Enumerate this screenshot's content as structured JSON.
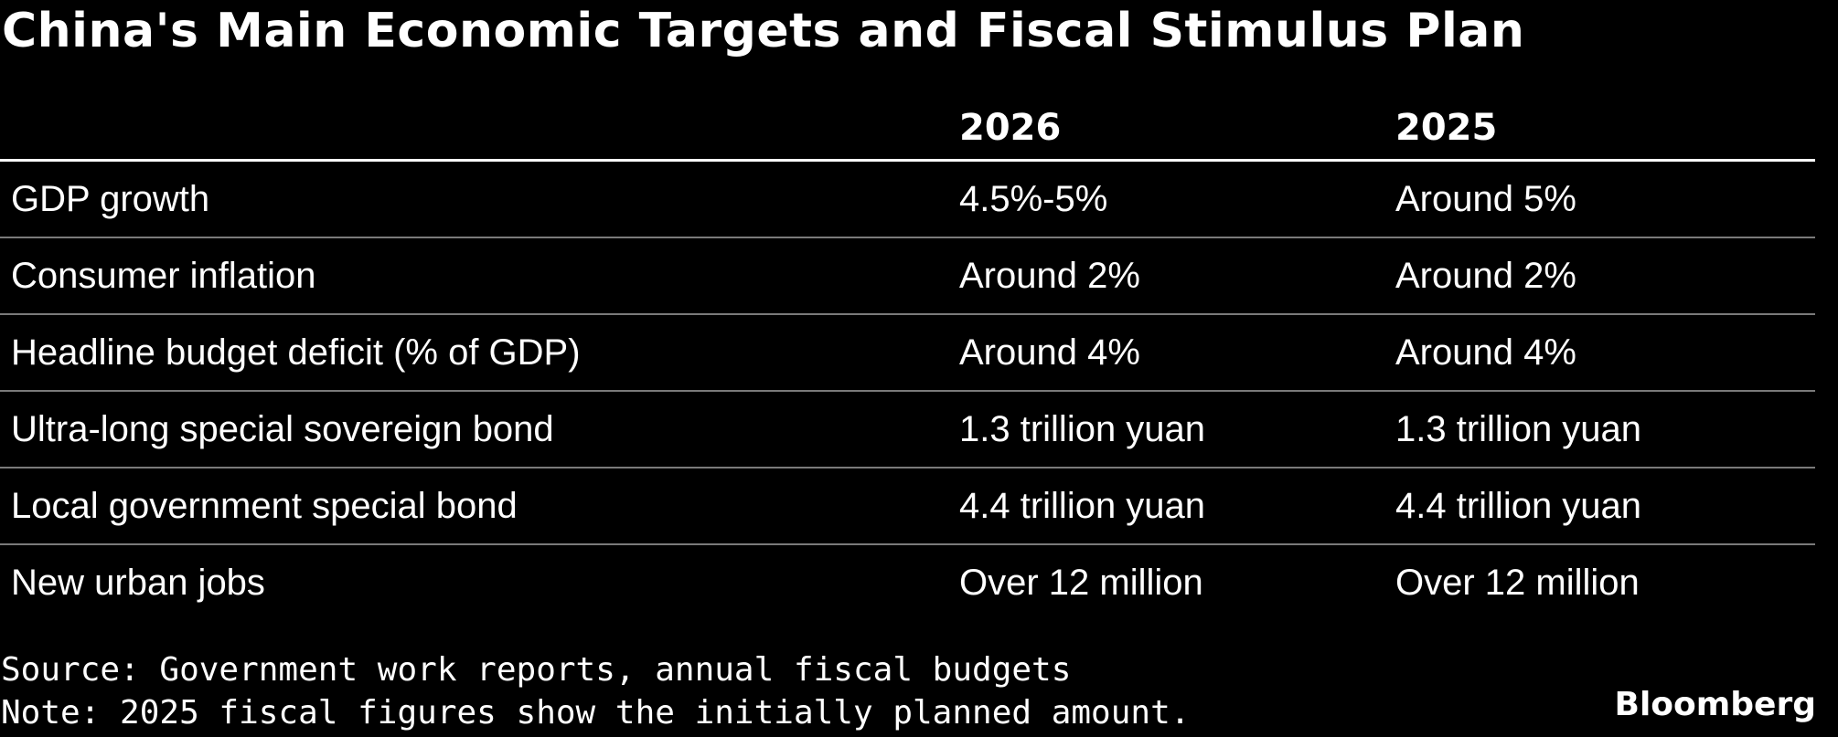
{
  "chart_data": {
    "type": "table",
    "title": "China's Main Economic Targets and Fiscal Stimulus Plan",
    "columns": [
      "",
      "2026",
      "2025"
    ],
    "rows": [
      {
        "label": "GDP growth",
        "v2026": "4.5%-5%",
        "v2025": "Around 5%"
      },
      {
        "label": "Consumer inflation",
        "v2026": "Around 2%",
        "v2025": "Around 2%"
      },
      {
        "label": "Headline budget deficit (% of GDP)",
        "v2026": "Around 4%",
        "v2025": "Around 4%"
      },
      {
        "label": "Ultra-long special sovereign bond",
        "v2026": "1.3 trillion yuan",
        "v2025": "1.3 trillion yuan"
      },
      {
        "label": "Local government special bond",
        "v2026": "4.4 trillion yuan",
        "v2025": "4.4 trillion yuan"
      },
      {
        "label": "New urban jobs",
        "v2026": "Over 12 million",
        "v2025": "Over 12 million"
      }
    ],
    "source": "Source: Government work reports, annual fiscal budgets",
    "note": "Note: 2025 fiscal figures show the initially planned amount."
  },
  "brand": "Bloomberg",
  "colors": {
    "background": "#000000",
    "text": "#ffffff",
    "header_rule": "#ffffff",
    "row_rule": "#7a7a7a"
  }
}
